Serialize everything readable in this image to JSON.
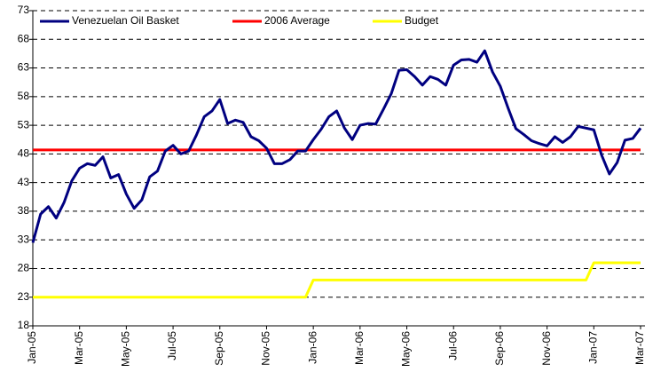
{
  "chart_data": {
    "type": "line",
    "categories": [
      "Jan-05",
      null,
      null,
      null,
      null,
      null,
      "Mar-05",
      null,
      null,
      null,
      null,
      null,
      "May-05",
      null,
      null,
      null,
      null,
      null,
      "Jul-05",
      null,
      null,
      null,
      null,
      null,
      "Sep-05",
      null,
      null,
      null,
      null,
      null,
      "Nov-05",
      null,
      null,
      null,
      null,
      null,
      "Jan-06",
      null,
      null,
      null,
      null,
      null,
      "Mar-06",
      null,
      null,
      null,
      null,
      null,
      "May-06",
      null,
      null,
      null,
      null,
      null,
      "Jul-06",
      null,
      null,
      null,
      null,
      null,
      "Sep-06",
      null,
      null,
      null,
      null,
      null,
      "Nov-06",
      null,
      null,
      null,
      null,
      null,
      "Jan-07",
      null,
      null,
      null,
      null,
      null,
      "Mar-07"
    ],
    "series": [
      {
        "name": "Venezuelan Oil Basket",
        "color": "#000080",
        "values": [
          32.5,
          37.5,
          38.8,
          36.8,
          39.5,
          43.3,
          45.5,
          46.3,
          46,
          47.5,
          43.8,
          44.4,
          41,
          38.5,
          40,
          44,
          45,
          48.5,
          49.5,
          48,
          48.5,
          51.3,
          54.5,
          55.5,
          57.5,
          53.3,
          53.9,
          53.5,
          51,
          50.3,
          49,
          46.3,
          46.3,
          47,
          48.5,
          48.5,
          50.5,
          52.3,
          54.5,
          55.5,
          52.5,
          50.5,
          53,
          53.3,
          53.2,
          55.8,
          58.5,
          62.6,
          62.7,
          61.5,
          60,
          61.5,
          61,
          60,
          63.5,
          64.4,
          64.5,
          64,
          66,
          62.3,
          59.8,
          56,
          52.4,
          51.4,
          50.3,
          49.8,
          49.4,
          51,
          50,
          51,
          52.8,
          52.5,
          52.2,
          47.8,
          44.5,
          46.5,
          50.4,
          50.7,
          52.5
        ]
      },
      {
        "name": "2006 Average",
        "color": "#ff0000",
        "values": [
          48.7,
          48.7,
          48.7,
          48.7,
          48.7,
          48.7,
          48.7,
          48.7,
          48.7,
          48.7,
          48.7,
          48.7,
          48.7,
          48.7,
          48.7,
          48.7,
          48.7,
          48.7,
          48.7,
          48.7,
          48.7,
          48.7,
          48.7,
          48.7,
          48.7,
          48.7,
          48.7,
          48.7,
          48.7,
          48.7,
          48.7,
          48.7,
          48.7,
          48.7,
          48.7,
          48.7,
          48.7,
          48.7,
          48.7,
          48.7,
          48.7,
          48.7,
          48.7,
          48.7,
          48.7,
          48.7,
          48.7,
          48.7,
          48.7,
          48.7,
          48.7,
          48.7,
          48.7,
          48.7,
          48.7,
          48.7,
          48.7,
          48.7,
          48.7,
          48.7,
          48.7,
          48.7,
          48.7,
          48.7,
          48.7,
          48.7,
          48.7,
          48.7,
          48.7,
          48.7,
          48.7,
          48.7,
          48.7,
          48.7,
          48.7,
          48.7,
          48.7,
          48.7,
          48.7
        ]
      },
      {
        "name": "Budget",
        "color": "#ffff00",
        "values": [
          23,
          23,
          23,
          23,
          23,
          23,
          23,
          23,
          23,
          23,
          23,
          23,
          23,
          23,
          23,
          23,
          23,
          23,
          23,
          23,
          23,
          23,
          23,
          23,
          23,
          23,
          23,
          23,
          23,
          23,
          23,
          23,
          23,
          23,
          23,
          23,
          26,
          26,
          26,
          26,
          26,
          26,
          26,
          26,
          26,
          26,
          26,
          26,
          26,
          26,
          26,
          26,
          26,
          26,
          26,
          26,
          26,
          26,
          26,
          26,
          26,
          26,
          26,
          26,
          26,
          26,
          26,
          26,
          26,
          26,
          26,
          26,
          29,
          29,
          29,
          29,
          29,
          29,
          29
        ]
      }
    ],
    "ylim": [
      18,
      73
    ],
    "yticks": [
      18,
      23,
      28,
      33,
      38,
      43,
      48,
      53,
      58,
      63,
      68,
      73
    ],
    "grid": true,
    "legend": "top"
  }
}
